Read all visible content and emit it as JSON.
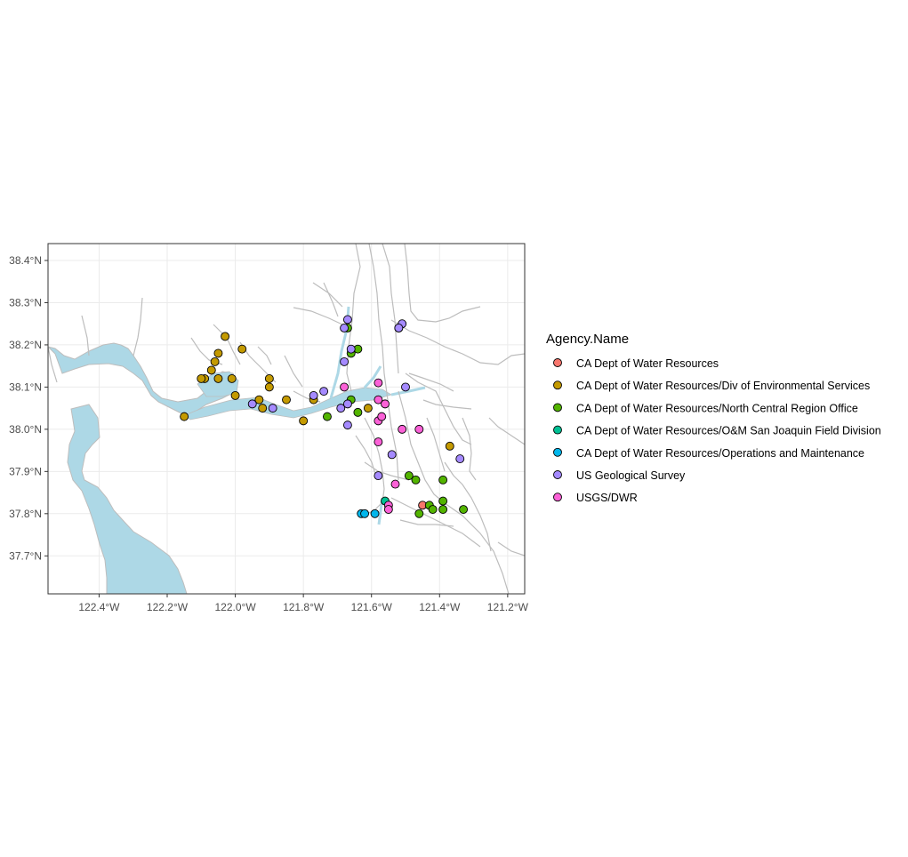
{
  "chart_data": {
    "type": "scatter",
    "title": "",
    "xlabel": "",
    "ylabel": "",
    "xlim": [
      -122.55,
      -121.15
    ],
    "ylim": [
      37.61,
      38.44
    ],
    "x_ticks": [
      "122.4°W",
      "122.2°W",
      "122.0°W",
      "121.8°W",
      "121.6°W",
      "121.4°W",
      "121.2°W"
    ],
    "x_tick_values": [
      -122.4,
      -122.2,
      -122.0,
      -121.8,
      -121.6,
      -121.4,
      -121.2
    ],
    "y_ticks": [
      "37.7°N",
      "37.8°N",
      "37.9°N",
      "38.0°N",
      "38.1°N",
      "38.2°N",
      "38.3°N",
      "38.4°N"
    ],
    "y_tick_values": [
      37.7,
      37.8,
      37.9,
      38.0,
      38.1,
      38.2,
      38.3,
      38.4
    ],
    "grid": true,
    "legend": {
      "title": "Agency.Name",
      "placement": "right"
    },
    "series": [
      {
        "name": "CA Dept of Water Resources",
        "color": "#F8766D",
        "points": [
          [
            -121.45,
            37.82
          ]
        ]
      },
      {
        "name": "CA Dept of Water Resources/Div of Environmental Services",
        "color": "#C49A00",
        "points": [
          [
            -122.15,
            38.03
          ],
          [
            -122.03,
            38.22
          ],
          [
            -122.05,
            38.18
          ],
          [
            -122.06,
            38.16
          ],
          [
            -122.07,
            38.14
          ],
          [
            -122.09,
            38.12
          ],
          [
            -122.1,
            38.12
          ],
          [
            -122.05,
            38.12
          ],
          [
            -122.01,
            38.12
          ],
          [
            -121.98,
            38.19
          ],
          [
            -122.0,
            38.08
          ],
          [
            -121.9,
            38.12
          ],
          [
            -121.9,
            38.1
          ],
          [
            -121.93,
            38.07
          ],
          [
            -121.92,
            38.05
          ],
          [
            -121.85,
            38.07
          ],
          [
            -121.8,
            38.02
          ],
          [
            -121.77,
            38.07
          ],
          [
            -121.61,
            38.05
          ],
          [
            -121.37,
            37.96
          ]
        ]
      },
      {
        "name": "CA Dept of Water Resources/North Central Region Office",
        "color": "#53B400",
        "points": [
          [
            -121.67,
            38.24
          ],
          [
            -121.66,
            38.18
          ],
          [
            -121.64,
            38.19
          ],
          [
            -121.66,
            38.07
          ],
          [
            -121.64,
            38.04
          ],
          [
            -121.73,
            38.03
          ],
          [
            -121.49,
            37.89
          ],
          [
            -121.47,
            37.88
          ],
          [
            -121.39,
            37.88
          ],
          [
            -121.43,
            37.82
          ],
          [
            -121.42,
            37.81
          ],
          [
            -121.39,
            37.83
          ],
          [
            -121.39,
            37.81
          ],
          [
            -121.46,
            37.8
          ],
          [
            -121.33,
            37.81
          ]
        ]
      },
      {
        "name": "CA Dept of Water Resources/O&M San Joaquin Field Division",
        "color": "#00C094",
        "points": [
          [
            -121.56,
            37.83
          ]
        ]
      },
      {
        "name": "CA Dept of Water Resources/Operations and Maintenance",
        "color": "#00B6EB",
        "points": [
          [
            -121.63,
            37.8
          ],
          [
            -121.62,
            37.8
          ],
          [
            -121.59,
            37.8
          ]
        ]
      },
      {
        "name": "US Geological Survey",
        "color": "#A58AFF",
        "points": [
          [
            -121.68,
            38.24
          ],
          [
            -121.67,
            38.26
          ],
          [
            -121.66,
            38.19
          ],
          [
            -121.68,
            38.16
          ],
          [
            -121.52,
            38.24
          ],
          [
            -121.51,
            38.25
          ],
          [
            -121.52,
            38.24
          ],
          [
            -121.5,
            38.1
          ],
          [
            -121.74,
            38.09
          ],
          [
            -121.77,
            38.08
          ],
          [
            -121.69,
            38.05
          ],
          [
            -121.67,
            38.06
          ],
          [
            -121.67,
            38.01
          ],
          [
            -121.95,
            38.06
          ],
          [
            -121.89,
            38.05
          ],
          [
            -121.58,
            37.89
          ],
          [
            -121.54,
            37.94
          ],
          [
            -121.34,
            37.93
          ]
        ]
      },
      {
        "name": "USGS/DWR",
        "color": "#FB61D7",
        "points": [
          [
            -121.68,
            38.1
          ],
          [
            -121.58,
            38.11
          ],
          [
            -121.58,
            38.07
          ],
          [
            -121.56,
            38.06
          ],
          [
            -121.58,
            38.02
          ],
          [
            -121.57,
            38.03
          ],
          [
            -121.51,
            38.0
          ],
          [
            -121.46,
            38.0
          ],
          [
            -121.58,
            37.97
          ],
          [
            -121.53,
            37.87
          ],
          [
            -121.55,
            37.82
          ],
          [
            -121.55,
            37.81
          ]
        ]
      }
    ]
  }
}
